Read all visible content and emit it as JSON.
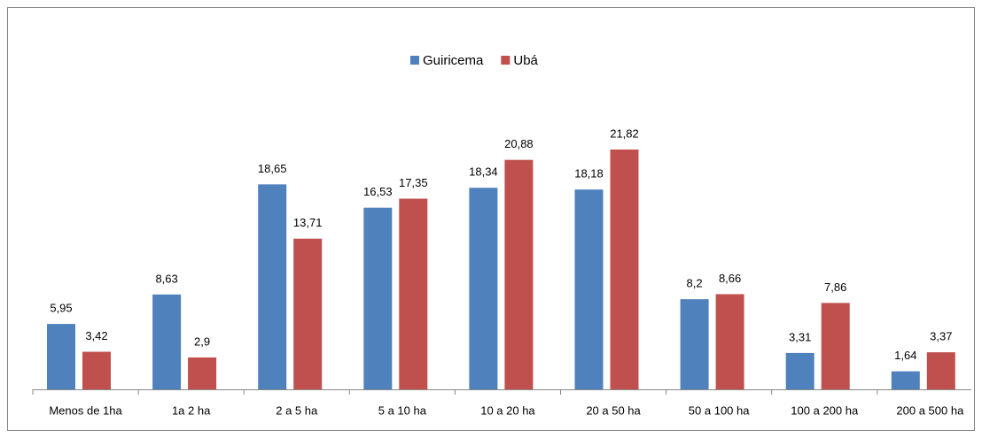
{
  "chart_data": {
    "type": "bar",
    "categories": [
      "Menos de 1ha",
      "1a 2 ha",
      "2 a 5 ha",
      "5 a 10 ha",
      "10 a 20 ha",
      "20 a 50 ha",
      "50 a 100 ha",
      "100 a 200 ha",
      "200 a 500 ha"
    ],
    "series": [
      {
        "name": "Guiricema",
        "color": "#4f81bd",
        "values": [
          5.95,
          8.63,
          18.65,
          16.53,
          18.34,
          18.18,
          8.2,
          3.31,
          1.64
        ],
        "value_labels": [
          "5,95",
          "8,63",
          "18,65",
          "16,53",
          "18,34",
          "18,18",
          "8,2",
          "3,31",
          "1,64"
        ]
      },
      {
        "name": "Ubá",
        "color": "#c0504d",
        "values": [
          3.42,
          2.9,
          13.71,
          17.35,
          20.88,
          21.82,
          8.66,
          7.86,
          3.37
        ],
        "value_labels": [
          "3,42",
          "2,9",
          "13,71",
          "17,35",
          "20,88",
          "21,82",
          "8,66",
          "7,86",
          "3,37"
        ]
      }
    ],
    "legend": "top"
  }
}
